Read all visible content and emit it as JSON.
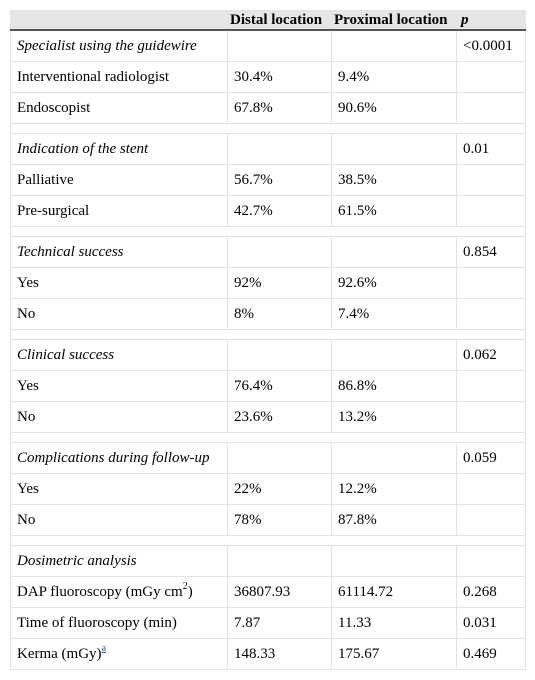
{
  "header": [
    "",
    "Distal location",
    "Proximal location",
    "p"
  ],
  "sections": [
    {
      "title": "Specialist using the guidewire",
      "p": "<0.0001",
      "rows": [
        {
          "label": "Interventional radiologist",
          "distal": "30.4%",
          "proximal": "9.4%",
          "p": ""
        },
        {
          "label": "Endoscopist",
          "distal": "67.8%",
          "proximal": "90.6%",
          "p": ""
        }
      ]
    },
    {
      "title": "Indication of the stent",
      "p": "0.01",
      "rows": [
        {
          "label": "Palliative",
          "distal": "56.7%",
          "proximal": "38.5%",
          "p": ""
        },
        {
          "label": "Pre-surgical",
          "distal": "42.7%",
          "proximal": "61.5%",
          "p": ""
        }
      ]
    },
    {
      "title": "Technical success",
      "p": "0.854",
      "rows": [
        {
          "label": "Yes",
          "distal": "92%",
          "proximal": "92.6%",
          "p": ""
        },
        {
          "label": "No",
          "distal": "8%",
          "proximal": "7.4%",
          "p": ""
        }
      ]
    },
    {
      "title": "Clinical success",
      "p": "0.062",
      "rows": [
        {
          "label": "Yes",
          "distal": "76.4%",
          "proximal": "86.8%",
          "p": ""
        },
        {
          "label": "No",
          "distal": "23.6%",
          "proximal": "13.2%",
          "p": ""
        }
      ]
    },
    {
      "title": "Complications during follow-up",
      "p": "0.059",
      "rows": [
        {
          "label": "Yes",
          "distal": "22%",
          "proximal": "12.2%",
          "p": ""
        },
        {
          "label": "No",
          "distal": "78%",
          "proximal": "87.8%",
          "p": ""
        }
      ]
    },
    {
      "title": "Dosimetric analysis",
      "p": "",
      "rows": [
        {
          "label": "DAP fluoroscopy (mGy cm",
          "sup": "2",
          "label_suffix": ")",
          "distal": "36807.93",
          "proximal": "61114.72",
          "p": "0.268"
        },
        {
          "label": "Time of fluoroscopy (min)",
          "distal": "7.87",
          "proximal": "11.33",
          "p": "0.031"
        },
        {
          "label": "Kerma (mGy)",
          "footnote": "a",
          "distal": "148.33",
          "proximal": "175.67",
          "p": "0.469"
        }
      ]
    }
  ]
}
